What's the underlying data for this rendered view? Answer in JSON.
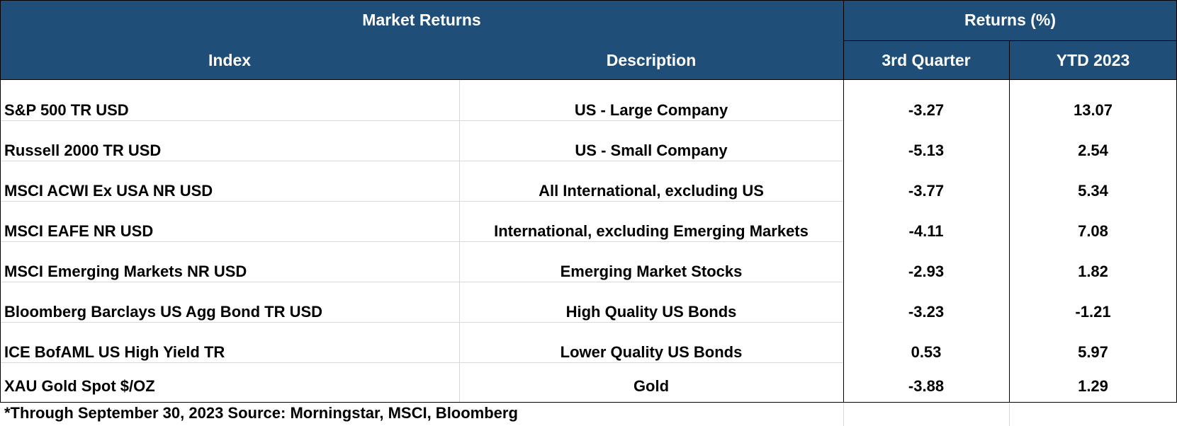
{
  "table": {
    "title": "Market Returns",
    "returns_group_label": "Returns (%)",
    "columns": {
      "index": "Index",
      "description": "Description",
      "q3": "3rd Quarter",
      "ytd": "YTD 2023"
    },
    "rows": [
      {
        "index": "S&P 500 TR USD",
        "description": "US - Large Company",
        "q3": "-3.27",
        "ytd": "13.07"
      },
      {
        "index": "Russell 2000 TR USD",
        "description": "US - Small Company",
        "q3": "-5.13",
        "ytd": "2.54"
      },
      {
        "index": "MSCI ACWI Ex USA NR USD",
        "description": "All International, excluding US",
        "q3": "-3.77",
        "ytd": "5.34"
      },
      {
        "index": "MSCI EAFE NR USD",
        "description": "International, excluding Emerging Markets",
        "q3": "-4.11",
        "ytd": "7.08"
      },
      {
        "index": "MSCI Emerging Markets NR USD",
        "description": "Emerging Market Stocks",
        "q3": "-2.93",
        "ytd": "1.82"
      },
      {
        "index": "Bloomberg Barclays US Agg Bond TR USD",
        "description": "High Quality US Bonds",
        "q3": "-3.23",
        "ytd": "-1.21"
      },
      {
        "index": "ICE BofAML US High Yield TR",
        "description": "Lower Quality US Bonds",
        "q3": "0.53",
        "ytd": "5.97"
      },
      {
        "index": "XAU Gold Spot $/OZ",
        "description": "Gold",
        "q3": "-3.88",
        "ytd": "1.29"
      }
    ],
    "footnote": "*Through September 30, 2023 Source: Morningstar, MSCI, Bloomberg"
  },
  "colors": {
    "header_bg": "#1F4E79",
    "header_text": "#FFFFFF",
    "body_text": "#000000"
  }
}
